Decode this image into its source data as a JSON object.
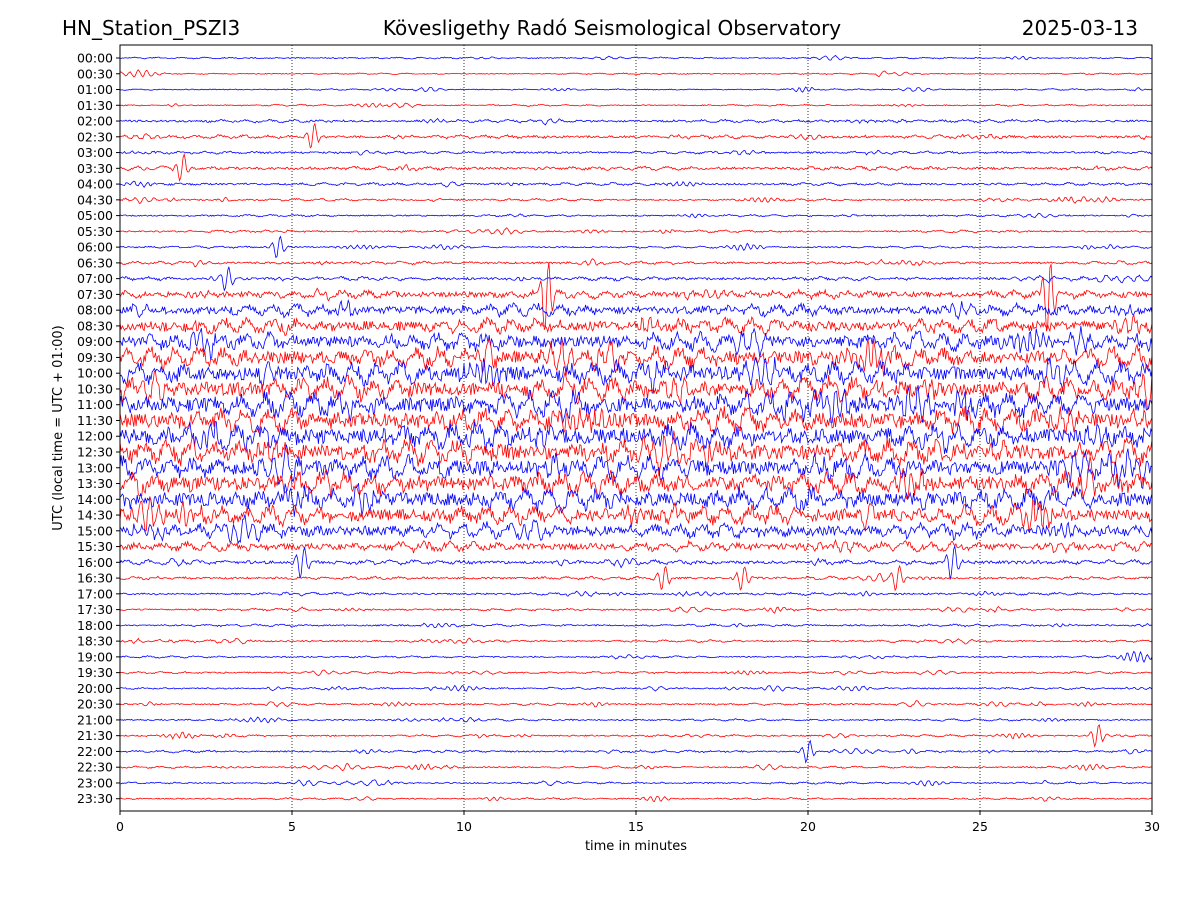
{
  "header": {
    "station": "HN_Station_PSZI3",
    "observatory": "Kövesligethy Radó Seismological Observatory",
    "date": "2025-03-13"
  },
  "chart_data": {
    "type": "line",
    "subtype": "helicorder",
    "xlabel": "time in minutes",
    "ylabel": "UTC (local time = UTC + 01:00)",
    "xlim": [
      0,
      30
    ],
    "x_ticks": [
      0,
      5,
      10,
      15,
      20,
      25,
      30
    ],
    "x_tick_labels": [
      "0",
      "5",
      "10",
      "15",
      "20",
      "25",
      "30"
    ],
    "vertical_grid": "dotted at 5-minute intervals",
    "row_minutes": 30,
    "row_labels": [
      "00:00",
      "00:30",
      "01:00",
      "01:30",
      "02:00",
      "02:30",
      "03:00",
      "03:30",
      "04:00",
      "04:30",
      "05:00",
      "05:30",
      "06:00",
      "06:30",
      "07:00",
      "07:30",
      "08:00",
      "08:30",
      "09:00",
      "09:30",
      "10:00",
      "10:30",
      "11:00",
      "11:30",
      "12:00",
      "12:30",
      "13:00",
      "13:30",
      "14:00",
      "14:30",
      "15:00",
      "15:30",
      "16:00",
      "16:30",
      "17:00",
      "17:30",
      "18:00",
      "18:30",
      "19:00",
      "19:30",
      "20:00",
      "20:30",
      "21:00",
      "21:30",
      "22:00",
      "22:30",
      "23:00",
      "23:30"
    ],
    "trace_colors": [
      "#0000ff",
      "#ff0000"
    ],
    "relative_activity": [
      0.7,
      0.6,
      0.6,
      0.7,
      1.3,
      1.5,
      1.2,
      1.6,
      1.2,
      1.0,
      0.9,
      1.0,
      0.9,
      1.3,
      1.6,
      3.5,
      5.0,
      6.5,
      7.5,
      8.5,
      9.0,
      9.5,
      10.0,
      10.0,
      10.0,
      10.0,
      9.5,
      9.5,
      9.0,
      8.0,
      6.5,
      4.0,
      2.0,
      1.3,
      1.1,
      1.0,
      1.0,
      1.0,
      0.9,
      0.9,
      0.9,
      0.9,
      0.9,
      0.9,
      1.0,
      0.9,
      0.9,
      0.8
    ],
    "notable_spikes": [
      {
        "row": "02:30",
        "minute": 5.6
      },
      {
        "row": "03:30",
        "minute": 1.8
      },
      {
        "row": "06:00",
        "minute": 4.6
      },
      {
        "row": "07:00",
        "minute": 3.1
      },
      {
        "row": "07:30",
        "minute": 12.4
      },
      {
        "row": "07:30",
        "minute": 27.0
      },
      {
        "row": "16:00",
        "minute": 5.3
      },
      {
        "row": "16:30",
        "minute": 15.8
      },
      {
        "row": "16:30",
        "minute": 18.1
      },
      {
        "row": "16:30",
        "minute": 22.6
      },
      {
        "row": "16:00",
        "minute": 24.2
      },
      {
        "row": "21:30",
        "minute": 28.4
      },
      {
        "row": "22:00",
        "minute": 20.0
      }
    ]
  }
}
